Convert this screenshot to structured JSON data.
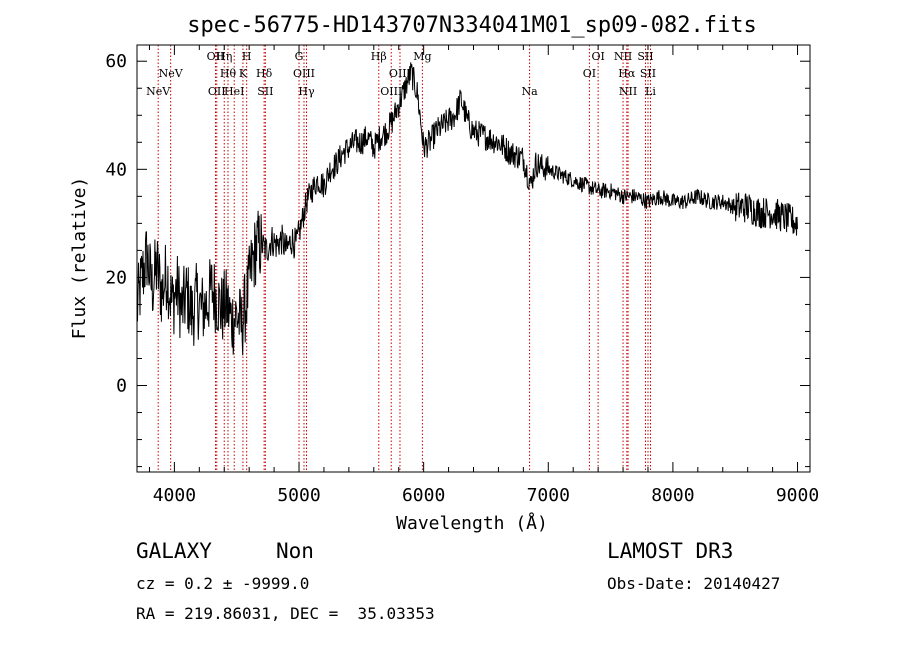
{
  "chart_data": {
    "type": "line",
    "title": "spec-56775-HD143707N334041M01_sp09-082.fits",
    "xlabel": "Wavelength (Å)",
    "ylabel": "Flux (relative)",
    "xlim": [
      3700,
      9100
    ],
    "ylim": [
      -16,
      63
    ],
    "xticks": [
      4000,
      5000,
      6000,
      7000,
      8000,
      9000
    ],
    "yticks": [
      0,
      20,
      40,
      60
    ],
    "line_color": "#cc0000",
    "spectrum_color": "#000000",
    "spectrum": {
      "x": [
        3700,
        3740,
        3780,
        3820,
        3860,
        3900,
        3940,
        3980,
        4020,
        4060,
        4100,
        4140,
        4180,
        4220,
        4260,
        4300,
        4340,
        4380,
        4420,
        4460,
        4500,
        4540,
        4580,
        4620,
        4660,
        4700,
        4740,
        4780,
        4820,
        4860,
        4900,
        4940,
        4980,
        5020,
        5060,
        5100,
        5150,
        5200,
        5250,
        5300,
        5350,
        5400,
        5450,
        5500,
        5550,
        5600,
        5650,
        5700,
        5750,
        5800,
        5850,
        5900,
        5950,
        6000,
        6050,
        6100,
        6150,
        6200,
        6250,
        6300,
        6350,
        6400,
        6500,
        6600,
        6700,
        6800,
        6860,
        6900,
        7000,
        7100,
        7200,
        7300,
        7400,
        7500,
        7600,
        7700,
        7800,
        7900,
        8000,
        8100,
        8200,
        8300,
        8400,
        8500,
        8600,
        8700,
        8800,
        8900,
        9000
      ],
      "y": [
        14,
        20,
        24,
        18,
        22,
        17,
        21,
        15,
        18,
        14,
        17,
        13,
        16,
        14,
        15,
        18,
        16,
        14,
        15,
        12,
        13,
        11,
        16,
        22,
        26,
        26,
        25,
        27,
        26,
        27,
        25,
        27,
        26,
        30,
        34,
        36,
        38,
        37,
        40,
        41,
        43,
        44,
        45,
        45,
        46,
        44,
        46,
        47,
        49,
        52,
        55,
        58,
        54,
        44,
        45,
        47,
        48,
        49,
        50,
        53,
        49,
        47,
        46,
        45,
        43,
        42,
        37,
        41,
        40,
        39,
        38,
        37,
        36,
        36,
        35,
        35,
        34,
        35,
        34,
        34,
        35,
        34,
        34,
        33,
        33,
        32,
        32,
        31,
        30
      ]
    },
    "lines": [
      {
        "label": "NeV",
        "x": 3870,
        "row": 2
      },
      {
        "label": "NeV",
        "x": 3970,
        "row": 1
      },
      {
        "label": "OII",
        "x": 4330,
        "row": 0
      },
      {
        "label": "OII",
        "x": 4340,
        "row": 2
      },
      {
        "label": "Hη",
        "x": 4400,
        "row": 0
      },
      {
        "label": "Hθ",
        "x": 4430,
        "row": 1
      },
      {
        "label": "HeI",
        "x": 4480,
        "row": 2
      },
      {
        "label": "K",
        "x": 4550,
        "row": 1
      },
      {
        "label": "H",
        "x": 4580,
        "row": 0
      },
      {
        "label": "Hδ",
        "x": 4720,
        "row": 1
      },
      {
        "label": "SII",
        "x": 4730,
        "row": 2
      },
      {
        "label": "G",
        "x": 5000,
        "row": 0
      },
      {
        "label": "OIII",
        "x": 5040,
        "row": 1
      },
      {
        "label": "Hγ",
        "x": 5060,
        "row": 2
      },
      {
        "label": "Hβ",
        "x": 5640,
        "row": 0
      },
      {
        "label": "OIII",
        "x": 5740,
        "row": 2
      },
      {
        "label": "OIII",
        "x": 5810,
        "row": 1
      },
      {
        "label": "Mg",
        "x": 5990,
        "row": 0
      },
      {
        "label": "Na",
        "x": 6850,
        "row": 2
      },
      {
        "label": "OI",
        "x": 7330,
        "row": 1
      },
      {
        "label": "OI",
        "x": 7400,
        "row": 0
      },
      {
        "label": "NII",
        "x": 7600,
        "row": 0
      },
      {
        "label": "Hα",
        "x": 7630,
        "row": 1
      },
      {
        "label": "NII",
        "x": 7640,
        "row": 2
      },
      {
        "label": "SII",
        "x": 7780,
        "row": 0
      },
      {
        "label": "SII",
        "x": 7800,
        "row": 1
      },
      {
        "label": "Li",
        "x": 7820,
        "row": 2
      }
    ]
  },
  "info": {
    "object_class": "GALAXY",
    "subclass": "Non",
    "survey": "LAMOST DR3",
    "cz": "cz = 0.2 ± -9999.0",
    "obs_date": "Obs-Date: 20140427",
    "coords": "RA = 219.86031, DEC =  35.03353"
  }
}
